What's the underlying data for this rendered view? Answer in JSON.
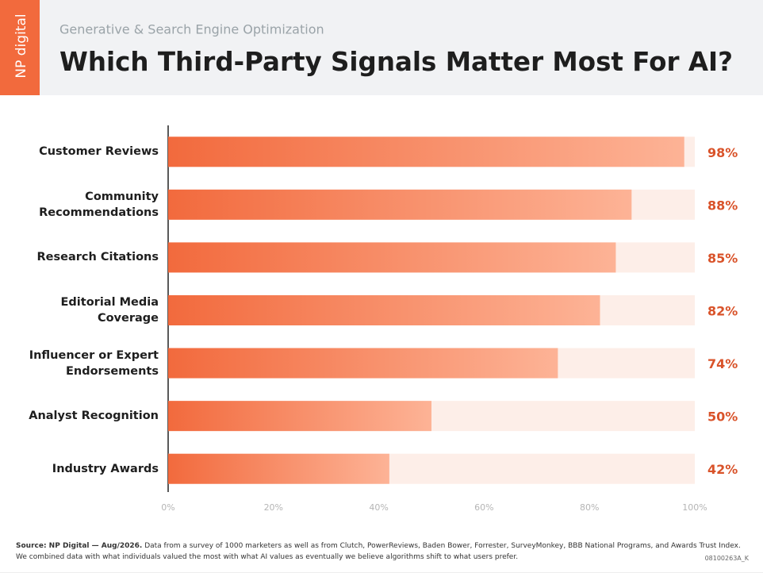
{
  "chart_data": {
    "type": "bar",
    "orientation": "horizontal",
    "brand": "NP digital",
    "subtitle": "Generative & Search Engine Optimization",
    "title": "Which Third-Party Signals Matter Most For AI?",
    "categories": [
      "Customer Reviews",
      "Community\nRecommendations",
      "Research Citations",
      "Editorial Media\nCoverage",
      "Influencer or Expert\nEndorsements",
      "Analyst Recognition",
      "Industry Awards"
    ],
    "values": [
      98,
      88,
      85,
      82,
      74,
      50,
      42
    ],
    "value_labels": [
      "98%",
      "88%",
      "85%",
      "82%",
      "74%",
      "50%",
      "42%"
    ],
    "color": "#f26a3d",
    "color_end": "#fdb396",
    "track_color": "#fdeee8",
    "xlim": [
      0,
      100
    ],
    "xticks": [
      {
        "value": 0,
        "label": "0%"
      },
      {
        "value": 20,
        "label": "20%"
      },
      {
        "value": 40,
        "label": "40%"
      },
      {
        "value": 60,
        "label": "60%"
      },
      {
        "value": 80,
        "label": "80%"
      },
      {
        "value": 100,
        "label": "100%"
      }
    ],
    "grid": false,
    "source_label": "Source: NP Digital — Aug/2026.",
    "source_text": "Data from a survey of 1000 marketers as well as from Clutch, PowerReviews, Baden Bower, Forrester, SurveyMonkey, BBB National Programs, and Awards Trust Index.",
    "note": "We combined data with what individuals valued the most with what AI values as eventually we believe algorithms shift to what users prefer.",
    "code": "08100263A_K"
  }
}
